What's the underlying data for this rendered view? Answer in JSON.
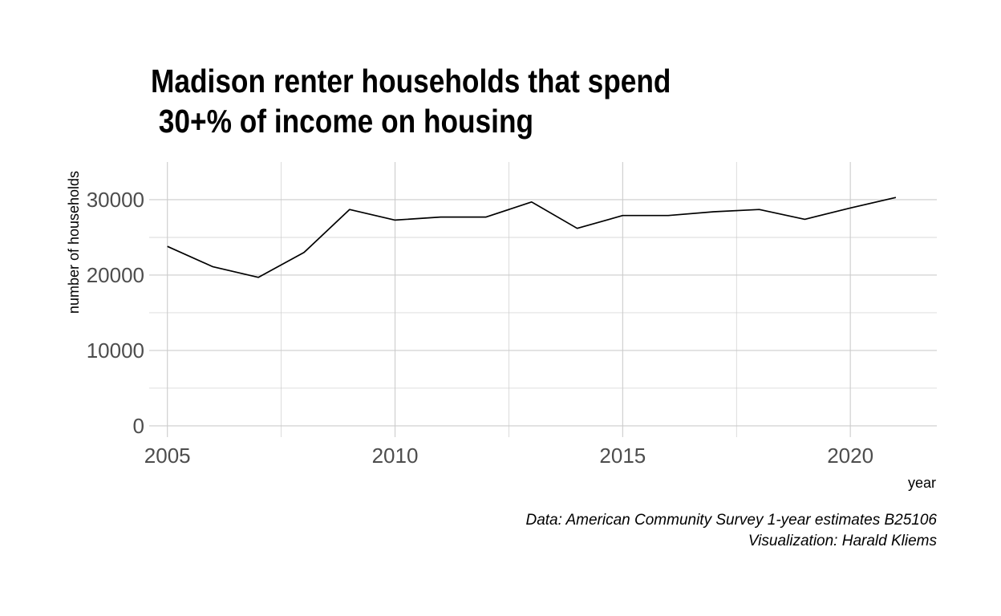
{
  "chart_data": {
    "type": "line",
    "title": "Madison renter households that spend\n 30+% of income on housing",
    "xlabel": "year",
    "ylabel": "number of households",
    "xlim": [
      2004.6,
      2021.9
    ],
    "ylim": [
      -1500,
      35000
    ],
    "x_ticks": [
      2005,
      2010,
      2015,
      2020
    ],
    "y_ticks": [
      0,
      10000,
      20000,
      30000
    ],
    "grid": true,
    "legend": "none",
    "line_color": "#000000",
    "series": [
      {
        "x": [
          2005,
          2006,
          2007,
          2008,
          2009,
          2010,
          2011,
          2012,
          2013,
          2014,
          2015,
          2016,
          2017,
          2018,
          2019,
          2020,
          2021
        ],
        "values": [
          23800,
          21100,
          19700,
          23000,
          28700,
          27300,
          27700,
          27700,
          29700,
          26200,
          27900,
          27900,
          28400,
          28700,
          27400,
          28900,
          30300
        ]
      }
    ],
    "caption": [
      "Data: American Community Survey 1-year estimates B25106",
      "Visualization: Harald Kliems"
    ]
  }
}
